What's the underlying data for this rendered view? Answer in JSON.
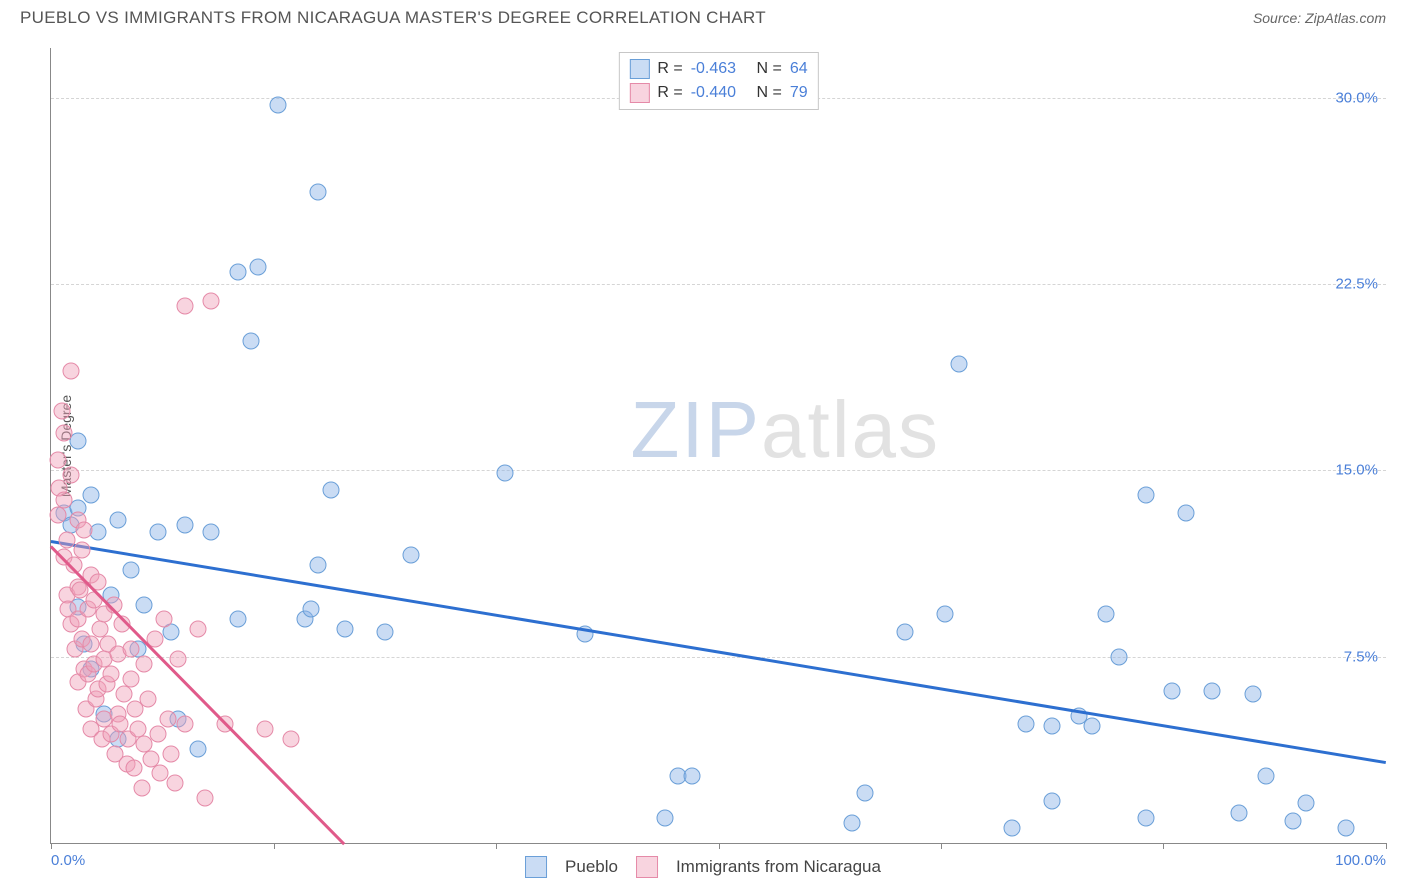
{
  "title": "PUEBLO VS IMMIGRANTS FROM NICARAGUA MASTER'S DEGREE CORRELATION CHART",
  "source_label": "Source: ",
  "source_name": "ZipAtlas.com",
  "chart": {
    "type": "scatter",
    "ylabel": "Master's Degree",
    "xlim": [
      0,
      100
    ],
    "ylim": [
      0,
      32
    ],
    "x_ticks": [
      0,
      16.67,
      33.33,
      50,
      66.67,
      83.33,
      100
    ],
    "x_tick_labels_shown": {
      "0": "0.0%",
      "100": "100.0%"
    },
    "y_ticks": [
      7.5,
      15.0,
      22.5,
      30.0
    ],
    "y_tick_labels": [
      "7.5%",
      "15.0%",
      "22.5%",
      "30.0%"
    ],
    "grid_color": "#d5d5d5",
    "axis_color": "#888888",
    "label_fontsize": 14,
    "tick_fontsize": 15,
    "tick_color": "#4a7fd8",
    "background_color": "#ffffff",
    "marker_radius": 8.5,
    "marker_border_width": 1.2,
    "series": [
      {
        "name": "Pueblo",
        "fill": "rgba(138,178,230,0.45)",
        "stroke": "#6a9fd8",
        "R": "-0.463",
        "N": "64",
        "trend": {
          "x1": 0,
          "y1": 12.2,
          "x2": 100,
          "y2": 3.3,
          "color": "#2d6fd0",
          "width": 2.5
        },
        "points": [
          [
            1,
            13.3
          ],
          [
            1.5,
            12.8
          ],
          [
            2,
            13.5
          ],
          [
            2,
            9.5
          ],
          [
            2,
            16.2
          ],
          [
            2.5,
            8
          ],
          [
            3,
            14
          ],
          [
            3,
            7
          ],
          [
            3.5,
            12.5
          ],
          [
            4,
            5.2
          ],
          [
            4.5,
            10
          ],
          [
            5,
            13
          ],
          [
            5,
            4.2
          ],
          [
            6,
            11
          ],
          [
            6.5,
            7.8
          ],
          [
            7,
            9.6
          ],
          [
            8,
            12.5
          ],
          [
            9,
            8.5
          ],
          [
            9.5,
            5
          ],
          [
            10,
            12.8
          ],
          [
            11,
            3.8
          ],
          [
            12,
            12.5
          ],
          [
            14,
            9
          ],
          [
            14,
            23
          ],
          [
            15,
            20.2
          ],
          [
            15.5,
            23.2
          ],
          [
            17,
            29.7
          ],
          [
            19,
            9
          ],
          [
            19.5,
            9.4
          ],
          [
            20,
            11.2
          ],
          [
            20,
            26.2
          ],
          [
            21,
            14.2
          ],
          [
            22,
            8.6
          ],
          [
            25,
            8.5
          ],
          [
            27,
            11.6
          ],
          [
            34,
            14.9
          ],
          [
            40,
            8.4
          ],
          [
            46,
            1
          ],
          [
            47,
            2.7
          ],
          [
            48,
            2.7
          ],
          [
            60,
            0.8
          ],
          [
            61,
            2
          ],
          [
            64,
            8.5
          ],
          [
            67,
            9.2
          ],
          [
            68,
            19.3
          ],
          [
            72,
            0.6
          ],
          [
            73,
            4.8
          ],
          [
            75,
            1.7
          ],
          [
            75,
            4.7
          ],
          [
            77,
            5.1
          ],
          [
            78,
            4.7
          ],
          [
            79,
            9.2
          ],
          [
            80,
            7.5
          ],
          [
            82,
            14
          ],
          [
            82,
            1
          ],
          [
            84,
            6.1
          ],
          [
            85,
            13.3
          ],
          [
            87,
            6.1
          ],
          [
            89,
            1.2
          ],
          [
            90,
            6
          ],
          [
            91,
            2.7
          ],
          [
            93,
            0.9
          ],
          [
            94,
            1.6
          ],
          [
            97,
            0.6
          ]
        ]
      },
      {
        "name": "Immigrants from Nicaragua",
        "fill": "rgba(240,160,185,0.45)",
        "stroke": "#e58aa8",
        "R": "-0.440",
        "N": "79",
        "trend": {
          "x1": 0,
          "y1": 12.0,
          "x2": 22,
          "y2": 0,
          "color": "#e05a8a",
          "width": 2.5
        },
        "points": [
          [
            0.5,
            13.2
          ],
          [
            0.5,
            15.4
          ],
          [
            0.6,
            14.3
          ],
          [
            0.8,
            17.4
          ],
          [
            1,
            11.5
          ],
          [
            1,
            13.8
          ],
          [
            1,
            16.5
          ],
          [
            1.2,
            10
          ],
          [
            1.2,
            12.2
          ],
          [
            1.3,
            9.4
          ],
          [
            1.5,
            14.8
          ],
          [
            1.5,
            8.8
          ],
          [
            1.5,
            19
          ],
          [
            1.7,
            11.2
          ],
          [
            1.8,
            7.8
          ],
          [
            2,
            13
          ],
          [
            2,
            10.3
          ],
          [
            2,
            9
          ],
          [
            2,
            6.5
          ],
          [
            2.2,
            10.2
          ],
          [
            2.3,
            8.2
          ],
          [
            2.3,
            11.8
          ],
          [
            2.5,
            7
          ],
          [
            2.5,
            12.6
          ],
          [
            2.6,
            5.4
          ],
          [
            2.8,
            9.4
          ],
          [
            2.8,
            6.8
          ],
          [
            3,
            10.8
          ],
          [
            3,
            8
          ],
          [
            3,
            4.6
          ],
          [
            3.2,
            7.2
          ],
          [
            3.2,
            9.8
          ],
          [
            3.4,
            5.8
          ],
          [
            3.5,
            10.5
          ],
          [
            3.5,
            6.2
          ],
          [
            3.7,
            8.6
          ],
          [
            3.8,
            4.2
          ],
          [
            4,
            7.4
          ],
          [
            4,
            9.2
          ],
          [
            4,
            5.0
          ],
          [
            4.2,
            6.4
          ],
          [
            4.3,
            8.0
          ],
          [
            4.5,
            4.4
          ],
          [
            4.5,
            6.8
          ],
          [
            4.7,
            9.6
          ],
          [
            4.8,
            3.6
          ],
          [
            5,
            7.6
          ],
          [
            5,
            5.2
          ],
          [
            5.2,
            4.8
          ],
          [
            5.3,
            8.8
          ],
          [
            5.5,
            6.0
          ],
          [
            5.7,
            3.2
          ],
          [
            5.8,
            4.2
          ],
          [
            6,
            6.6
          ],
          [
            6,
            7.8
          ],
          [
            6.2,
            3.0
          ],
          [
            6.3,
            5.4
          ],
          [
            6.5,
            4.6
          ],
          [
            6.8,
            2.2
          ],
          [
            7,
            7.2
          ],
          [
            7,
            4.0
          ],
          [
            7.3,
            5.8
          ],
          [
            7.5,
            3.4
          ],
          [
            7.8,
            8.2
          ],
          [
            8,
            4.4
          ],
          [
            8.2,
            2.8
          ],
          [
            8.5,
            9.0
          ],
          [
            8.8,
            5.0
          ],
          [
            9,
            3.6
          ],
          [
            9.3,
            2.4
          ],
          [
            9.5,
            7.4
          ],
          [
            10,
            4.8
          ],
          [
            10,
            21.6
          ],
          [
            11,
            8.6
          ],
          [
            11.5,
            1.8
          ],
          [
            12,
            21.8
          ],
          [
            13,
            4.8
          ],
          [
            16,
            4.6
          ],
          [
            18,
            4.2
          ]
        ]
      }
    ],
    "watermark": {
      "part1": "ZIP",
      "part2": "atlas"
    }
  },
  "legend_top": {
    "r_label": "R =",
    "n_label": "N ="
  },
  "legend_bottom": {
    "items": [
      "Pueblo",
      "Immigrants from Nicaragua"
    ]
  }
}
